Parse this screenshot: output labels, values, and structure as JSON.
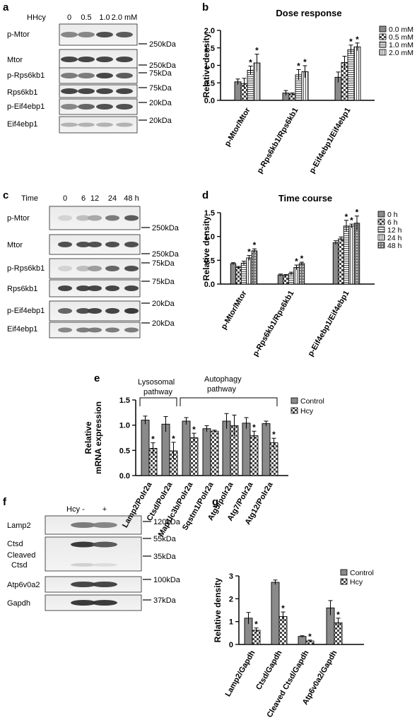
{
  "panels": {
    "a": {
      "letter": "a",
      "header": "HHcy",
      "conc": [
        "0",
        "0.5",
        "1.0",
        "2.0 mM"
      ],
      "rows": [
        {
          "label": "p-Mtor",
          "marker": "250kDa",
          "marker_pos": "below"
        },
        {
          "label": "Mtor",
          "marker": "250kDa",
          "marker_pos": "below"
        },
        {
          "label": "p-Rps6kb1",
          "marker": "75kDa",
          "marker_pos": "above"
        },
        {
          "label": "Rps6kb1",
          "marker": "75kDa",
          "marker_pos": "mid"
        },
        {
          "label": "p-Eif4ebp1",
          "marker": "20kDa",
          "marker_pos": "above"
        },
        {
          "label": "Eif4ebp1",
          "marker": "20kDa",
          "marker_pos": "above"
        }
      ]
    },
    "c": {
      "letter": "c",
      "header": "Time",
      "times": [
        "0",
        "6",
        "12",
        "24",
        "48 h"
      ],
      "rows": [
        {
          "label": "p-Mtor",
          "marker": "250kDa",
          "marker_pos": "below"
        },
        {
          "label": "Mtor",
          "marker": "250kDa",
          "marker_pos": "below"
        },
        {
          "label": "p-Rps6kb1",
          "marker": "75kDa",
          "marker_pos": "above"
        },
        {
          "label": "Rps6kb1",
          "marker": "75kDa",
          "marker_pos": "above"
        },
        {
          "label": "p-Eif4ebp1",
          "marker": "20kDa",
          "marker_pos": "above"
        },
        {
          "label": "Eif4ebp1",
          "marker": "20kDa",
          "marker_pos": "above"
        }
      ]
    },
    "f": {
      "letter": "f",
      "header": "Hcy",
      "signs": [
        "-",
        "+"
      ],
      "rows": [
        {
          "label": "Lamp2",
          "markers": [
            "120kDa"
          ]
        },
        {
          "label": "Ctsd",
          "label2": "Cleaved",
          "label3": "Ctsd",
          "markers": [
            "55kDa",
            "35kDa"
          ]
        },
        {
          "label": "Atp6v0a2",
          "markers": [
            "100kDa"
          ]
        },
        {
          "label": "Gapdh",
          "markers": [
            "37kDa"
          ]
        }
      ]
    },
    "e_annot": {
      "lyso1": "Lysosomal",
      "lyso2": "pathway",
      "auto1": "Autophagy",
      "auto2": "pathway"
    }
  },
  "chart_data": [
    {
      "id": "b",
      "letter": "b",
      "type": "bar",
      "title": "Dose response",
      "ylabel": "Relative density",
      "ylim": [
        0,
        2.0
      ],
      "yticks": [
        "0.0",
        "0.5",
        "1.0",
        "1.5",
        "2.0"
      ],
      "categories": [
        "p-Mtor/Mtor",
        "p-Rps6kb1/Rps6kb1",
        "p-Eif4ebp1/Eif4ebp1"
      ],
      "series": [
        {
          "name": "0.0 mM",
          "values": [
            0.53,
            0.21,
            0.66
          ],
          "errors": [
            0.08,
            0.07,
            0.15
          ],
          "sig": [
            false,
            false,
            false
          ]
        },
        {
          "name": "0.5 mM",
          "values": [
            0.48,
            0.18,
            1.08
          ],
          "errors": [
            0.15,
            0.03,
            0.18
          ],
          "sig": [
            false,
            false,
            false
          ]
        },
        {
          "name": "1.0 mM",
          "values": [
            0.86,
            0.73,
            1.45
          ],
          "errors": [
            0.12,
            0.15,
            0.13
          ],
          "sig": [
            true,
            true,
            true
          ]
        },
        {
          "name": "2.0 mM",
          "values": [
            1.07,
            0.82,
            1.53
          ],
          "errors": [
            0.25,
            0.17,
            0.11
          ],
          "sig": [
            true,
            true,
            true
          ]
        }
      ],
      "legend_position": "right"
    },
    {
      "id": "d",
      "letter": "d",
      "type": "bar",
      "title": "Time course",
      "ylabel": "Relative density",
      "ylim": [
        0,
        1.5
      ],
      "yticks": [
        "0.0",
        "0.5",
        "1.0",
        "1.5"
      ],
      "categories": [
        "p-Mtor/Mtor",
        "p-Rps6kb1/Rps6kb1",
        "p-Eif4ebp1/Eif4ebp1"
      ],
      "series": [
        {
          "name": "0 h",
          "values": [
            0.43,
            0.19,
            0.87
          ],
          "errors": [
            0.02,
            0.02,
            0.04
          ],
          "sig": [
            false,
            false,
            false
          ]
        },
        {
          "name": "6 h",
          "values": [
            0.35,
            0.18,
            0.95
          ],
          "errors": [
            0.02,
            0.02,
            0.04
          ],
          "sig": [
            false,
            false,
            false
          ]
        },
        {
          "name": "12 h",
          "values": [
            0.44,
            0.22,
            1.22
          ],
          "errors": [
            0.04,
            0.03,
            0.12
          ],
          "sig": [
            false,
            false,
            true
          ]
        },
        {
          "name": "24 h",
          "values": [
            0.55,
            0.35,
            1.22
          ],
          "errors": [
            0.05,
            0.05,
            0.04
          ],
          "sig": [
            true,
            true,
            true
          ]
        },
        {
          "name": "48 h",
          "values": [
            0.7,
            0.43,
            1.28
          ],
          "errors": [
            0.04,
            0.03,
            0.15
          ],
          "sig": [
            true,
            true,
            true
          ]
        }
      ],
      "legend_position": "right"
    },
    {
      "id": "e",
      "letter": "e",
      "type": "bar",
      "title": "",
      "ylabel": "Relative mRNA expression",
      "ylabel_lines": [
        "Relative",
        "mRNA expression"
      ],
      "ylim": [
        0,
        1.5
      ],
      "yticks": [
        "0.0",
        "0.5",
        "1.0",
        "1.5"
      ],
      "categories": [
        "Lamp2/Polr2a",
        "Ctsd/Polr2a",
        "Map1lc3b/Polr2a",
        "Sqstm1/Polr2a",
        "Atg5/polr2a",
        "Atg7/Polr2a",
        "Atg12/Polr2a"
      ],
      "series": [
        {
          "name": "Control",
          "values": [
            1.1,
            1.02,
            1.08,
            0.93,
            1.08,
            1.04,
            1.03
          ],
          "errors": [
            0.08,
            0.15,
            0.07,
            0.06,
            0.15,
            0.11,
            0.05
          ],
          "sig": [
            false,
            false,
            false,
            false,
            false,
            false,
            false
          ]
        },
        {
          "name": "Hcy",
          "values": [
            0.54,
            0.49,
            0.75,
            0.88,
            0.99,
            0.79,
            0.65
          ],
          "errors": [
            0.11,
            0.17,
            0.09,
            0.02,
            0.21,
            0.09,
            0.09
          ],
          "sig": [
            true,
            true,
            true,
            false,
            false,
            true,
            true
          ]
        }
      ],
      "legend_position": "top-right"
    },
    {
      "id": "g",
      "letter": "g",
      "type": "bar",
      "title": "",
      "ylabel": "Relative density",
      "ylim": [
        0,
        3
      ],
      "yticks": [
        "0",
        "1",
        "2",
        "3"
      ],
      "categories": [
        "Lamp2/Gapdh",
        "Ctsd/Gapdh",
        "Cleaved Ctsd/Gapdh",
        "Atp6v0a2/Gapdh"
      ],
      "series": [
        {
          "name": "Control",
          "values": [
            1.15,
            2.72,
            0.35,
            1.6
          ],
          "errors": [
            0.25,
            0.1,
            0.03,
            0.32
          ],
          "sig": [
            false,
            false,
            false,
            false
          ]
        },
        {
          "name": "Hcy",
          "values": [
            0.62,
            1.22,
            0.15,
            0.95
          ],
          "errors": [
            0.1,
            0.2,
            0.04,
            0.2
          ],
          "sig": [
            true,
            true,
            true,
            true
          ]
        }
      ],
      "legend_position": "top-right"
    }
  ]
}
